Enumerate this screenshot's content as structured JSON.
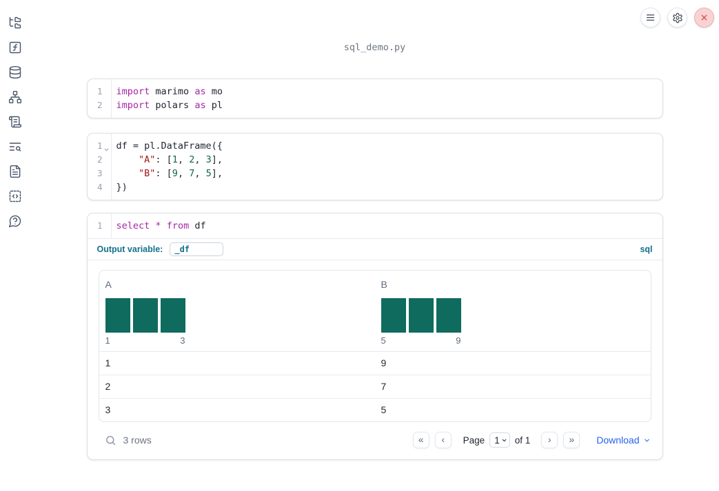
{
  "window": {
    "filename": "sql_demo.py"
  },
  "topbar": {
    "buttons": [
      {
        "name": "notebook-menu",
        "icon": "menu-icon"
      },
      {
        "name": "settings",
        "icon": "gear-icon"
      },
      {
        "name": "shutdown",
        "icon": "close-icon"
      }
    ]
  },
  "sidebar": {
    "items": [
      {
        "name": "file-explorer",
        "icon": "file-tree-icon"
      },
      {
        "name": "variables",
        "icon": "function-square-icon"
      },
      {
        "name": "data-sources",
        "icon": "database-icon"
      },
      {
        "name": "dependency-graph",
        "icon": "network-icon"
      },
      {
        "name": "outline",
        "icon": "scroll-icon"
      },
      {
        "name": "search",
        "icon": "text-search-icon"
      },
      {
        "name": "documentation",
        "icon": "file-text-icon"
      },
      {
        "name": "snippets",
        "icon": "code-square-icon"
      },
      {
        "name": "help",
        "icon": "help-bubble-icon"
      }
    ]
  },
  "cells": [
    {
      "id": "imports",
      "lines": [
        {
          "n": "1",
          "fold": false,
          "tokens": [
            [
              "kw",
              "import"
            ],
            [
              "pl",
              " marimo "
            ],
            [
              "kw",
              "as"
            ],
            [
              "pl",
              " mo"
            ]
          ]
        },
        {
          "n": "2",
          "fold": false,
          "tokens": [
            [
              "kw",
              "import"
            ],
            [
              "pl",
              " polars "
            ],
            [
              "kw",
              "as"
            ],
            [
              "pl",
              " pl"
            ]
          ]
        }
      ]
    },
    {
      "id": "dataframe",
      "lines": [
        {
          "n": "1",
          "fold": true,
          "tokens": [
            [
              "pl",
              "df = pl.DataFrame({"
            ]
          ]
        },
        {
          "n": "2",
          "fold": false,
          "tokens": [
            [
              "pl",
              "    "
            ],
            [
              "str",
              "\"A\""
            ],
            [
              "pl",
              ": ["
            ],
            [
              "num",
              "1"
            ],
            [
              "pl",
              ", "
            ],
            [
              "num",
              "2"
            ],
            [
              "pl",
              ", "
            ],
            [
              "num",
              "3"
            ],
            [
              "pl",
              "],"
            ]
          ]
        },
        {
          "n": "3",
          "fold": false,
          "tokens": [
            [
              "pl",
              "    "
            ],
            [
              "str",
              "\"B\""
            ],
            [
              "pl",
              ": ["
            ],
            [
              "num",
              "9"
            ],
            [
              "pl",
              ", "
            ],
            [
              "num",
              "7"
            ],
            [
              "pl",
              ", "
            ],
            [
              "num",
              "5"
            ],
            [
              "pl",
              "],"
            ]
          ]
        },
        {
          "n": "4",
          "fold": false,
          "tokens": [
            [
              "pl",
              "})"
            ]
          ]
        }
      ]
    },
    {
      "id": "sql",
      "lines": [
        {
          "n": "1",
          "fold": false,
          "tokens": [
            [
              "kw",
              "select"
            ],
            [
              "pl",
              " "
            ],
            [
              "kw",
              "*"
            ],
            [
              "pl",
              " "
            ],
            [
              "kw",
              "from"
            ],
            [
              "pl",
              " df"
            ]
          ]
        }
      ]
    }
  ],
  "sql_cell": {
    "output_variable_label": "Output variable:",
    "output_variable_value": "_df",
    "language_label": "sql"
  },
  "table": {
    "columns": [
      {
        "label": "A",
        "hist": {
          "bars": [
            1,
            1,
            1
          ],
          "min_label": "1",
          "max_label": "3"
        }
      },
      {
        "label": "B",
        "hist": {
          "bars": [
            1,
            1,
            1
          ],
          "min_label": "5",
          "max_label": "9"
        }
      }
    ],
    "rows": [
      [
        "1",
        "9"
      ],
      [
        "2",
        "7"
      ],
      [
        "3",
        "5"
      ]
    ],
    "footer": {
      "row_count": "3 rows",
      "first_page_icon": "«",
      "prev_page_icon": "‹",
      "page_label": "Page",
      "page_value": "1",
      "of_label": "of 1",
      "next_page_icon": "›",
      "last_page_icon": "»",
      "download_label": "Download"
    }
  },
  "colors": {
    "histogram_bar": "#0e6b5e",
    "accent_blue": "#2563eb",
    "sql_accent": "#14708e",
    "close_red": "#dd4a4a",
    "keyword": "#a626a4",
    "string": "#a31515",
    "number": "#116644"
  }
}
